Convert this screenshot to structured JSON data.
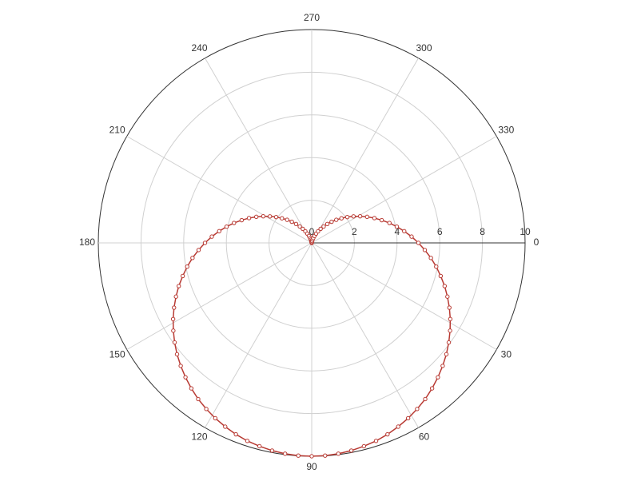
{
  "chart_data": {
    "type": "polar",
    "theta": [
      0,
      3.6,
      7.2,
      10.8,
      14.4,
      18,
      21.6,
      25.2,
      28.8,
      32.4,
      36,
      39.6,
      43.2,
      46.8,
      50.4,
      54,
      57.6,
      61.2,
      64.8,
      68.4,
      72,
      75.6,
      79.2,
      82.8,
      86.4,
      90,
      93.6,
      97.2,
      100.8,
      104.4,
      108,
      111.6,
      115.2,
      118.8,
      122.4,
      126,
      129.6,
      133.2,
      136.8,
      140.4,
      144,
      147.6,
      151.2,
      154.8,
      158.4,
      162,
      165.6,
      169.2,
      172.8,
      176.4,
      180,
      183.6,
      187.2,
      190.8,
      194.4,
      198,
      201.6,
      205.2,
      208.8,
      212.4,
      216,
      219.6,
      223.2,
      226.8,
      230.4,
      234,
      237.6,
      241.2,
      244.8,
      248.4,
      252,
      255.6,
      259.2,
      262.8,
      266.4,
      270,
      273.6,
      277.2,
      280.8,
      284.4,
      288,
      291.6,
      295.2,
      298.8,
      302.4,
      306,
      309.6,
      313.2,
      316.8,
      320.4,
      324,
      327.6,
      331.2,
      334.8,
      338.4,
      342,
      345.6,
      349.2,
      352.8,
      356.4
    ],
    "values": [
      5,
      5.31,
      5.63,
      5.94,
      6.24,
      6.55,
      6.84,
      7.13,
      7.41,
      7.68,
      7.94,
      8.19,
      8.42,
      8.64,
      8.85,
      9.05,
      9.22,
      9.38,
      9.52,
      9.65,
      9.76,
      9.84,
      9.91,
      9.96,
      9.99,
      10,
      9.99,
      9.96,
      9.91,
      9.84,
      9.76,
      9.65,
      9.52,
      9.38,
      9.22,
      9.05,
      8.85,
      8.64,
      8.42,
      8.19,
      7.94,
      7.68,
      7.41,
      7.13,
      6.84,
      6.55,
      6.24,
      5.94,
      5.63,
      5.31,
      5,
      4.69,
      4.37,
      4.06,
      3.76,
      3.45,
      3.16,
      2.87,
      2.59,
      2.32,
      2.06,
      1.81,
      1.58,
      1.36,
      1.15,
      0.95,
      0.78,
      0.62,
      0.48,
      0.35,
      0.24,
      0.16,
      0.09,
      0.04,
      0.01,
      0,
      0.01,
      0.04,
      0.09,
      0.16,
      0.24,
      0.35,
      0.48,
      0.62,
      0.78,
      0.95,
      1.15,
      1.36,
      1.58,
      1.81,
      2.06,
      2.32,
      2.59,
      2.87,
      3.16,
      3.45,
      3.76,
      4.06,
      4.37,
      4.69
    ],
    "color": "#b83a33",
    "rlim": [
      0,
      10
    ],
    "rticks": [
      0,
      2,
      4,
      6,
      8,
      10
    ],
    "thetaticks": [
      0,
      30,
      60,
      90,
      120,
      150,
      180,
      210,
      240,
      270,
      300,
      330
    ],
    "grid": true
  }
}
